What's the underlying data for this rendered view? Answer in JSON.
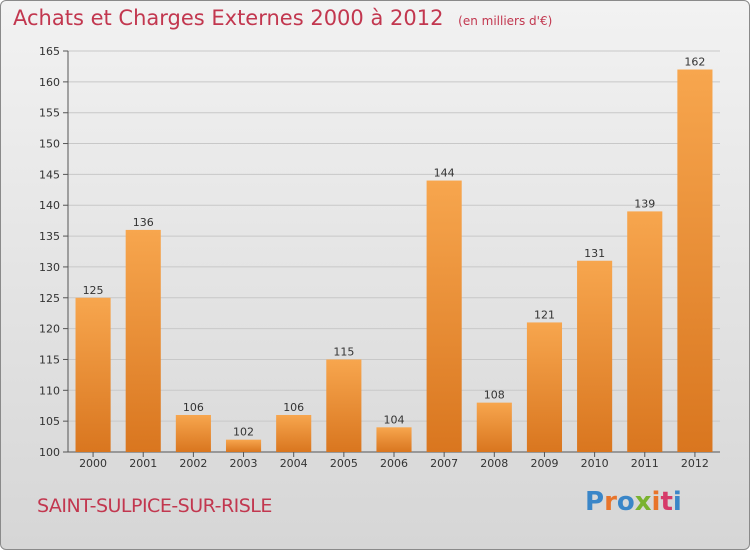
{
  "header": {
    "title": "Achats et Charges Externes 2000 à 2012",
    "subtitle": "(en milliers d'€)"
  },
  "footer": {
    "commune": "SAINT-SULPICE-SUR-RISLE",
    "logo_text": "Proxiti"
  },
  "colors": {
    "title": "#c2374f",
    "bar_light": "#f7a64e",
    "bar_dark": "#d9761f",
    "grid": "#c8c8c8",
    "logo": [
      "#3a86c8",
      "#e8742a",
      "#3a86c8",
      "#7ab32f",
      "#e8742a",
      "#d63b6a",
      "#3a86c8"
    ]
  },
  "chart_data": {
    "type": "bar",
    "title": "Achats et Charges Externes 2000 à 2012",
    "subtitle": "(en milliers d'€)",
    "categories": [
      "2000",
      "2001",
      "2002",
      "2003",
      "2004",
      "2005",
      "2006",
      "2007",
      "2008",
      "2009",
      "2010",
      "2011",
      "2012"
    ],
    "values": [
      125,
      136,
      106,
      102,
      106,
      115,
      104,
      144,
      108,
      121,
      131,
      139,
      162
    ],
    "ylim": [
      100,
      165
    ],
    "yticks": [
      100,
      105,
      110,
      115,
      120,
      125,
      130,
      135,
      140,
      145,
      150,
      155,
      160,
      165
    ],
    "grid": true,
    "xlabel": "",
    "ylabel": ""
  }
}
